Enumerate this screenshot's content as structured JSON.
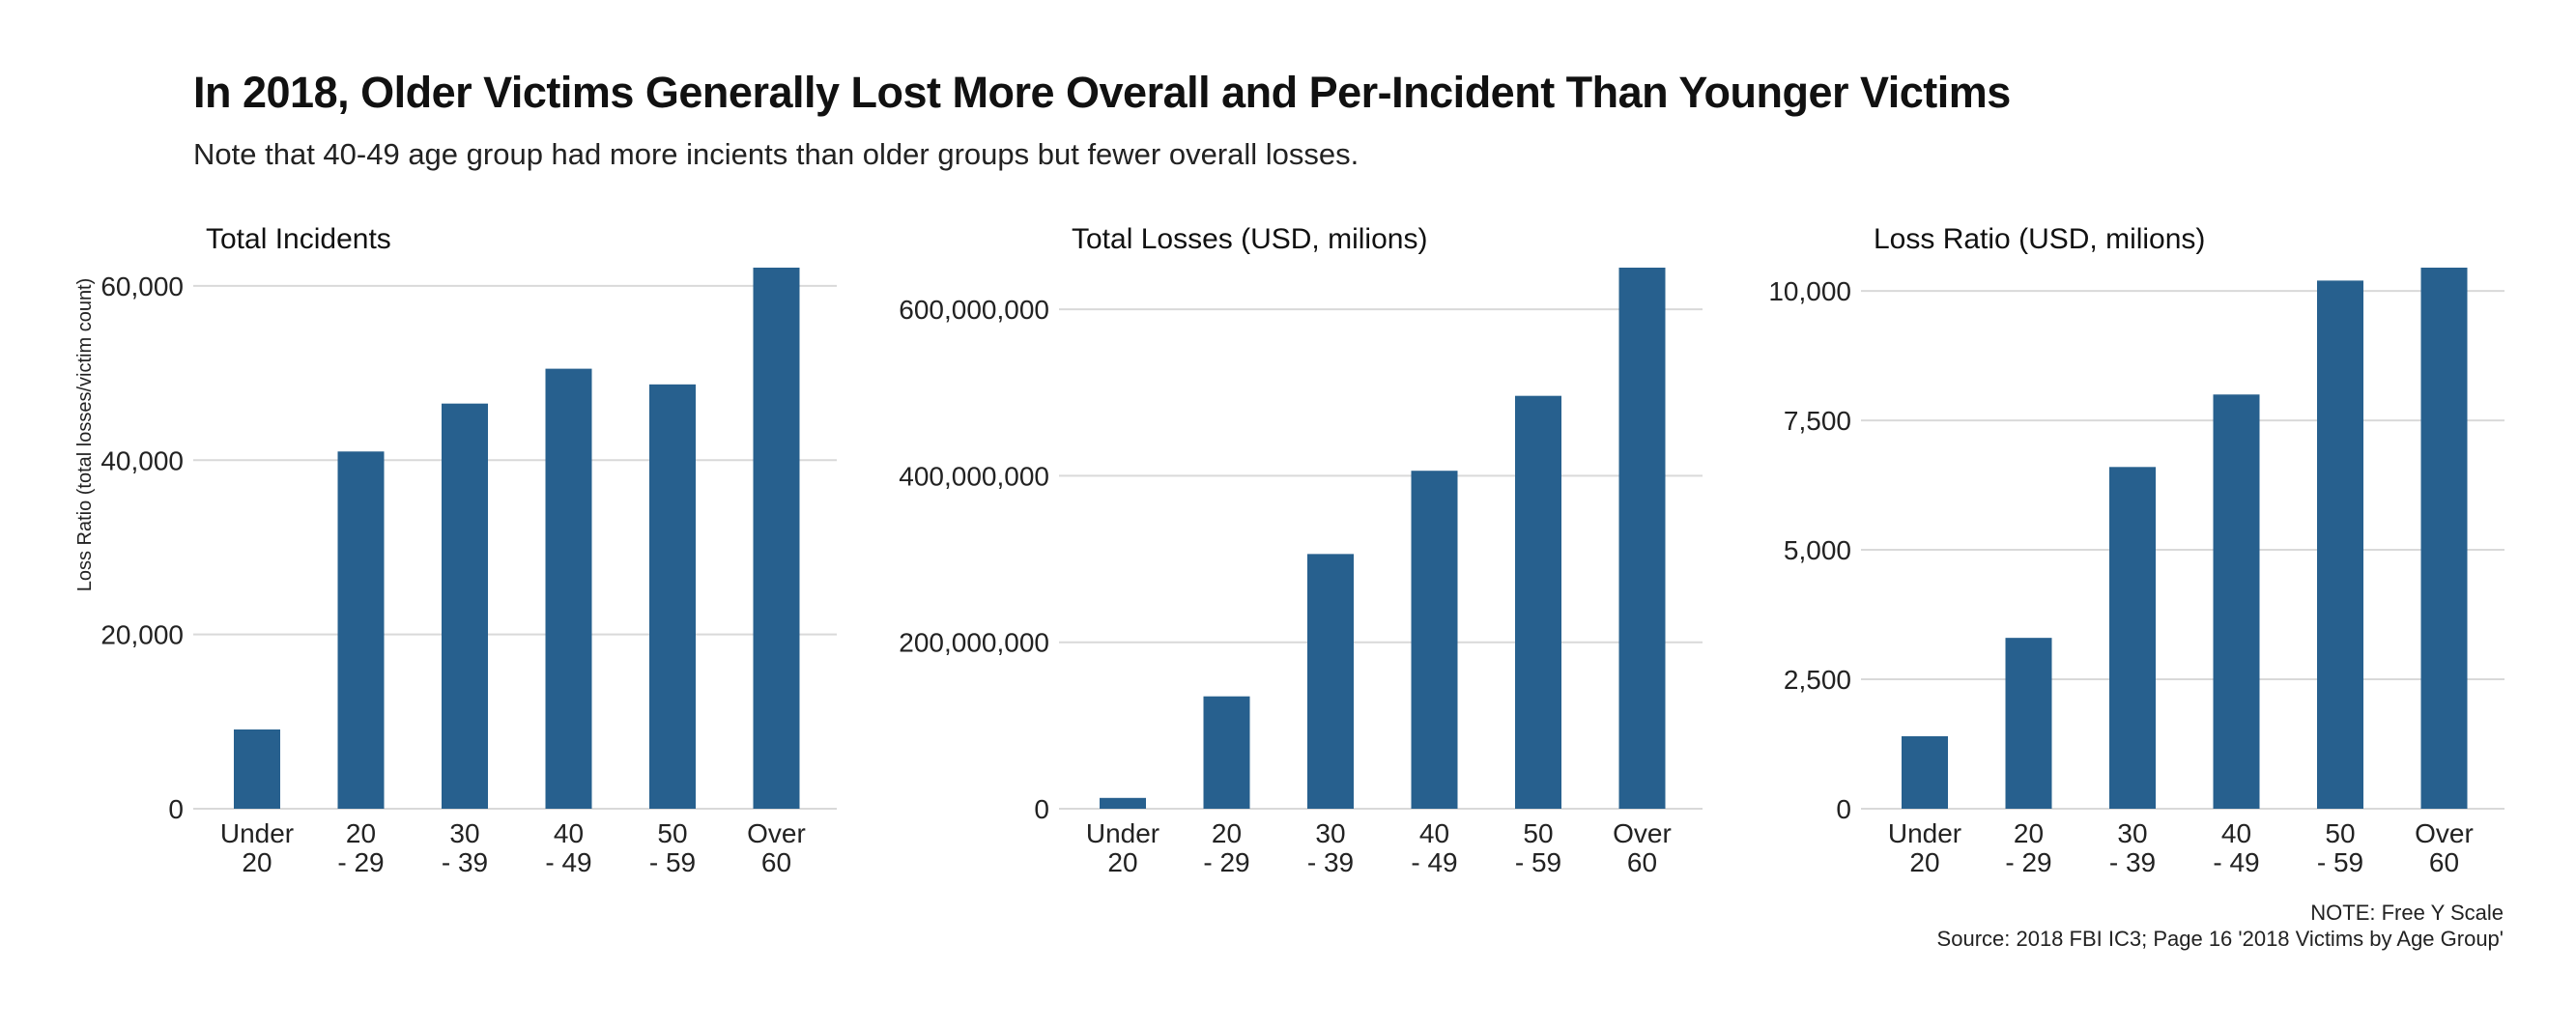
{
  "title": "In 2018, Older Victims Generally Lost More Overall and Per-Incident Than Younger Victims",
  "subtitle": "Note that 40-49 age group had more incients than older groups but fewer overall losses.",
  "note": "NOTE: Free Y Scale",
  "source": "Source: 2018 FBI IC3; Page 16 '2018 Victims by Age Group'",
  "colors": {
    "bar": "#27608e",
    "grid": "#d9d9d9",
    "text": "#222222"
  },
  "chart_data": [
    {
      "type": "bar",
      "title": "Total Incidents",
      "ylabel": "Loss Ratio (total losses/victim count)",
      "xlabel": "",
      "categories": [
        [
          "Under",
          "20"
        ],
        [
          "20",
          "- 29"
        ],
        [
          "30",
          "- 39"
        ],
        [
          "40",
          "- 49"
        ],
        [
          "50",
          "- 59"
        ],
        [
          "Over",
          "60"
        ]
      ],
      "values": [
        9100,
        41000,
        46500,
        50500,
        48700,
        62100
      ],
      "ylim": [
        0,
        62100
      ],
      "yticks": [
        0,
        20000,
        40000,
        60000
      ],
      "ytick_labels": [
        "0",
        "20,000",
        "40,000",
        "60,000"
      ],
      "grid": true
    },
    {
      "type": "bar",
      "title": "Total Losses (USD, milions)",
      "xlabel": "",
      "ylabel": "",
      "categories": [
        [
          "Under",
          "20"
        ],
        [
          "20",
          "- 29"
        ],
        [
          "30",
          "- 39"
        ],
        [
          "40",
          "- 49"
        ],
        [
          "50",
          "- 59"
        ],
        [
          "Over",
          "60"
        ]
      ],
      "values": [
        13000000,
        135000000,
        306000000,
        406000000,
        496000000,
        650000000
      ],
      "ylim": [
        0,
        650000000
      ],
      "yticks": [
        0,
        200000000,
        400000000,
        600000000
      ],
      "ytick_labels": [
        "0",
        "200,000,000",
        "400,000,000",
        "600,000,000"
      ],
      "grid": true
    },
    {
      "type": "bar",
      "title": "Loss Ratio (USD, milions)",
      "xlabel": "",
      "ylabel": "",
      "categories": [
        [
          "Under",
          "20"
        ],
        [
          "20",
          "- 29"
        ],
        [
          "30",
          "- 39"
        ],
        [
          "40",
          "- 49"
        ],
        [
          "50",
          "- 59"
        ],
        [
          "Over",
          "60"
        ]
      ],
      "values": [
        1400,
        3300,
        6600,
        8000,
        10200,
        10450
      ],
      "ylim": [
        0,
        10450
      ],
      "yticks": [
        0,
        2500,
        5000,
        7500,
        10000
      ],
      "ytick_labels": [
        "0",
        "2,500",
        "5,000",
        "7,500",
        "10,000"
      ],
      "grid": true
    }
  ]
}
